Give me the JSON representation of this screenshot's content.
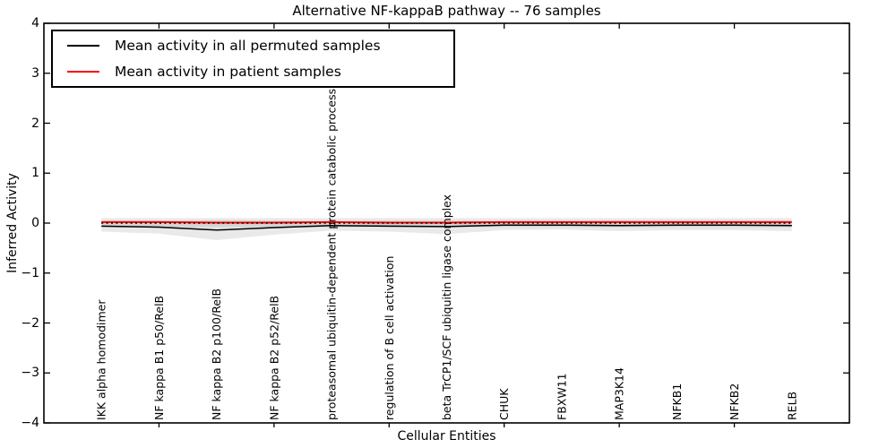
{
  "figure": {
    "title": "Alternative NF-kappaB pathway -- 76 samples",
    "xlabel": "Cellular Entities",
    "ylabel": "Inferred Activity",
    "background_color": "#ffffff",
    "spine_color": "#000000"
  },
  "legend": {
    "position": "upper left",
    "entries": [
      {
        "label": "Mean activity in all permuted samples",
        "color": "#000000"
      },
      {
        "label": "Mean activity in patient samples",
        "color": "#ff0000"
      }
    ]
  },
  "chart_data": {
    "type": "line",
    "title": "Alternative NF-kappaB pathway -- 76 samples",
    "xlabel": "Cellular Entities",
    "ylabel": "Inferred Activity",
    "ylim": [
      -4,
      4
    ],
    "yticks": [
      4,
      3,
      2,
      1,
      0,
      -1,
      -2,
      -3,
      -4
    ],
    "y_tick_labels": [
      "4",
      "3",
      "2",
      "1",
      "0",
      "−1",
      "−2",
      "−3",
      "−4"
    ],
    "grid": false,
    "legend_position": "upper left",
    "categories": [
      "IKK alpha homodimer",
      "NF kappa B1 p50/RelB",
      "NF kappa B2 p100/RelB",
      "NF kappa B2 p52/RelB",
      "proteasomal ubiquitin-dependent protein catabolic process",
      "regulation of B cell activation",
      "beta TrCP1/SCF ubiquitin ligase complex",
      "CHUK",
      "FBXW11",
      "MAP3K14",
      "NFKB1",
      "NFKB2",
      "RELB"
    ],
    "series": [
      {
        "name": "Mean activity in all permuted samples",
        "color": "#000000",
        "line_width": 1.5,
        "values": [
          -0.06,
          -0.08,
          -0.14,
          -0.09,
          -0.05,
          -0.06,
          -0.07,
          -0.04,
          -0.04,
          -0.05,
          -0.04,
          -0.04,
          -0.05
        ]
      },
      {
        "name": "Mean activity in patient samples",
        "color": "#ff0000",
        "line_width": 2,
        "values": [
          0.02,
          0.02,
          0.01,
          0.01,
          0.02,
          0.01,
          0.01,
          0.02,
          0.02,
          0.02,
          0.02,
          0.02,
          0.02
        ]
      }
    ],
    "bands": [
      {
        "name": "permuted-samples-spread",
        "color": "rgba(0,0,0,0.085)",
        "upper": [
          0.05,
          0.05,
          0.06,
          0.05,
          0.04,
          0.05,
          0.05,
          0.04,
          0.04,
          0.05,
          0.04,
          0.04,
          0.05
        ],
        "lower": [
          -0.17,
          -0.21,
          -0.34,
          -0.23,
          -0.15,
          -0.17,
          -0.22,
          -0.14,
          -0.13,
          -0.16,
          -0.14,
          -0.14,
          -0.16
        ]
      },
      {
        "name": "patient-samples-spread",
        "color": "rgba(0,0,0,0.085)",
        "upper": [
          0.1,
          0.1,
          0.1,
          0.1,
          0.1,
          0.1,
          0.1,
          0.1,
          0.1,
          0.1,
          0.1,
          0.1,
          0.1
        ],
        "lower": [
          -0.08,
          -0.08,
          -0.08,
          -0.08,
          -0.08,
          -0.08,
          -0.08,
          -0.08,
          -0.08,
          -0.08,
          -0.08,
          -0.08,
          -0.08
        ]
      }
    ],
    "zero_line": {
      "y": 0,
      "style": "dotted",
      "color": "#000000"
    },
    "x_ticked_category_indices": [
      1,
      3,
      5,
      7,
      9,
      11
    ]
  }
}
